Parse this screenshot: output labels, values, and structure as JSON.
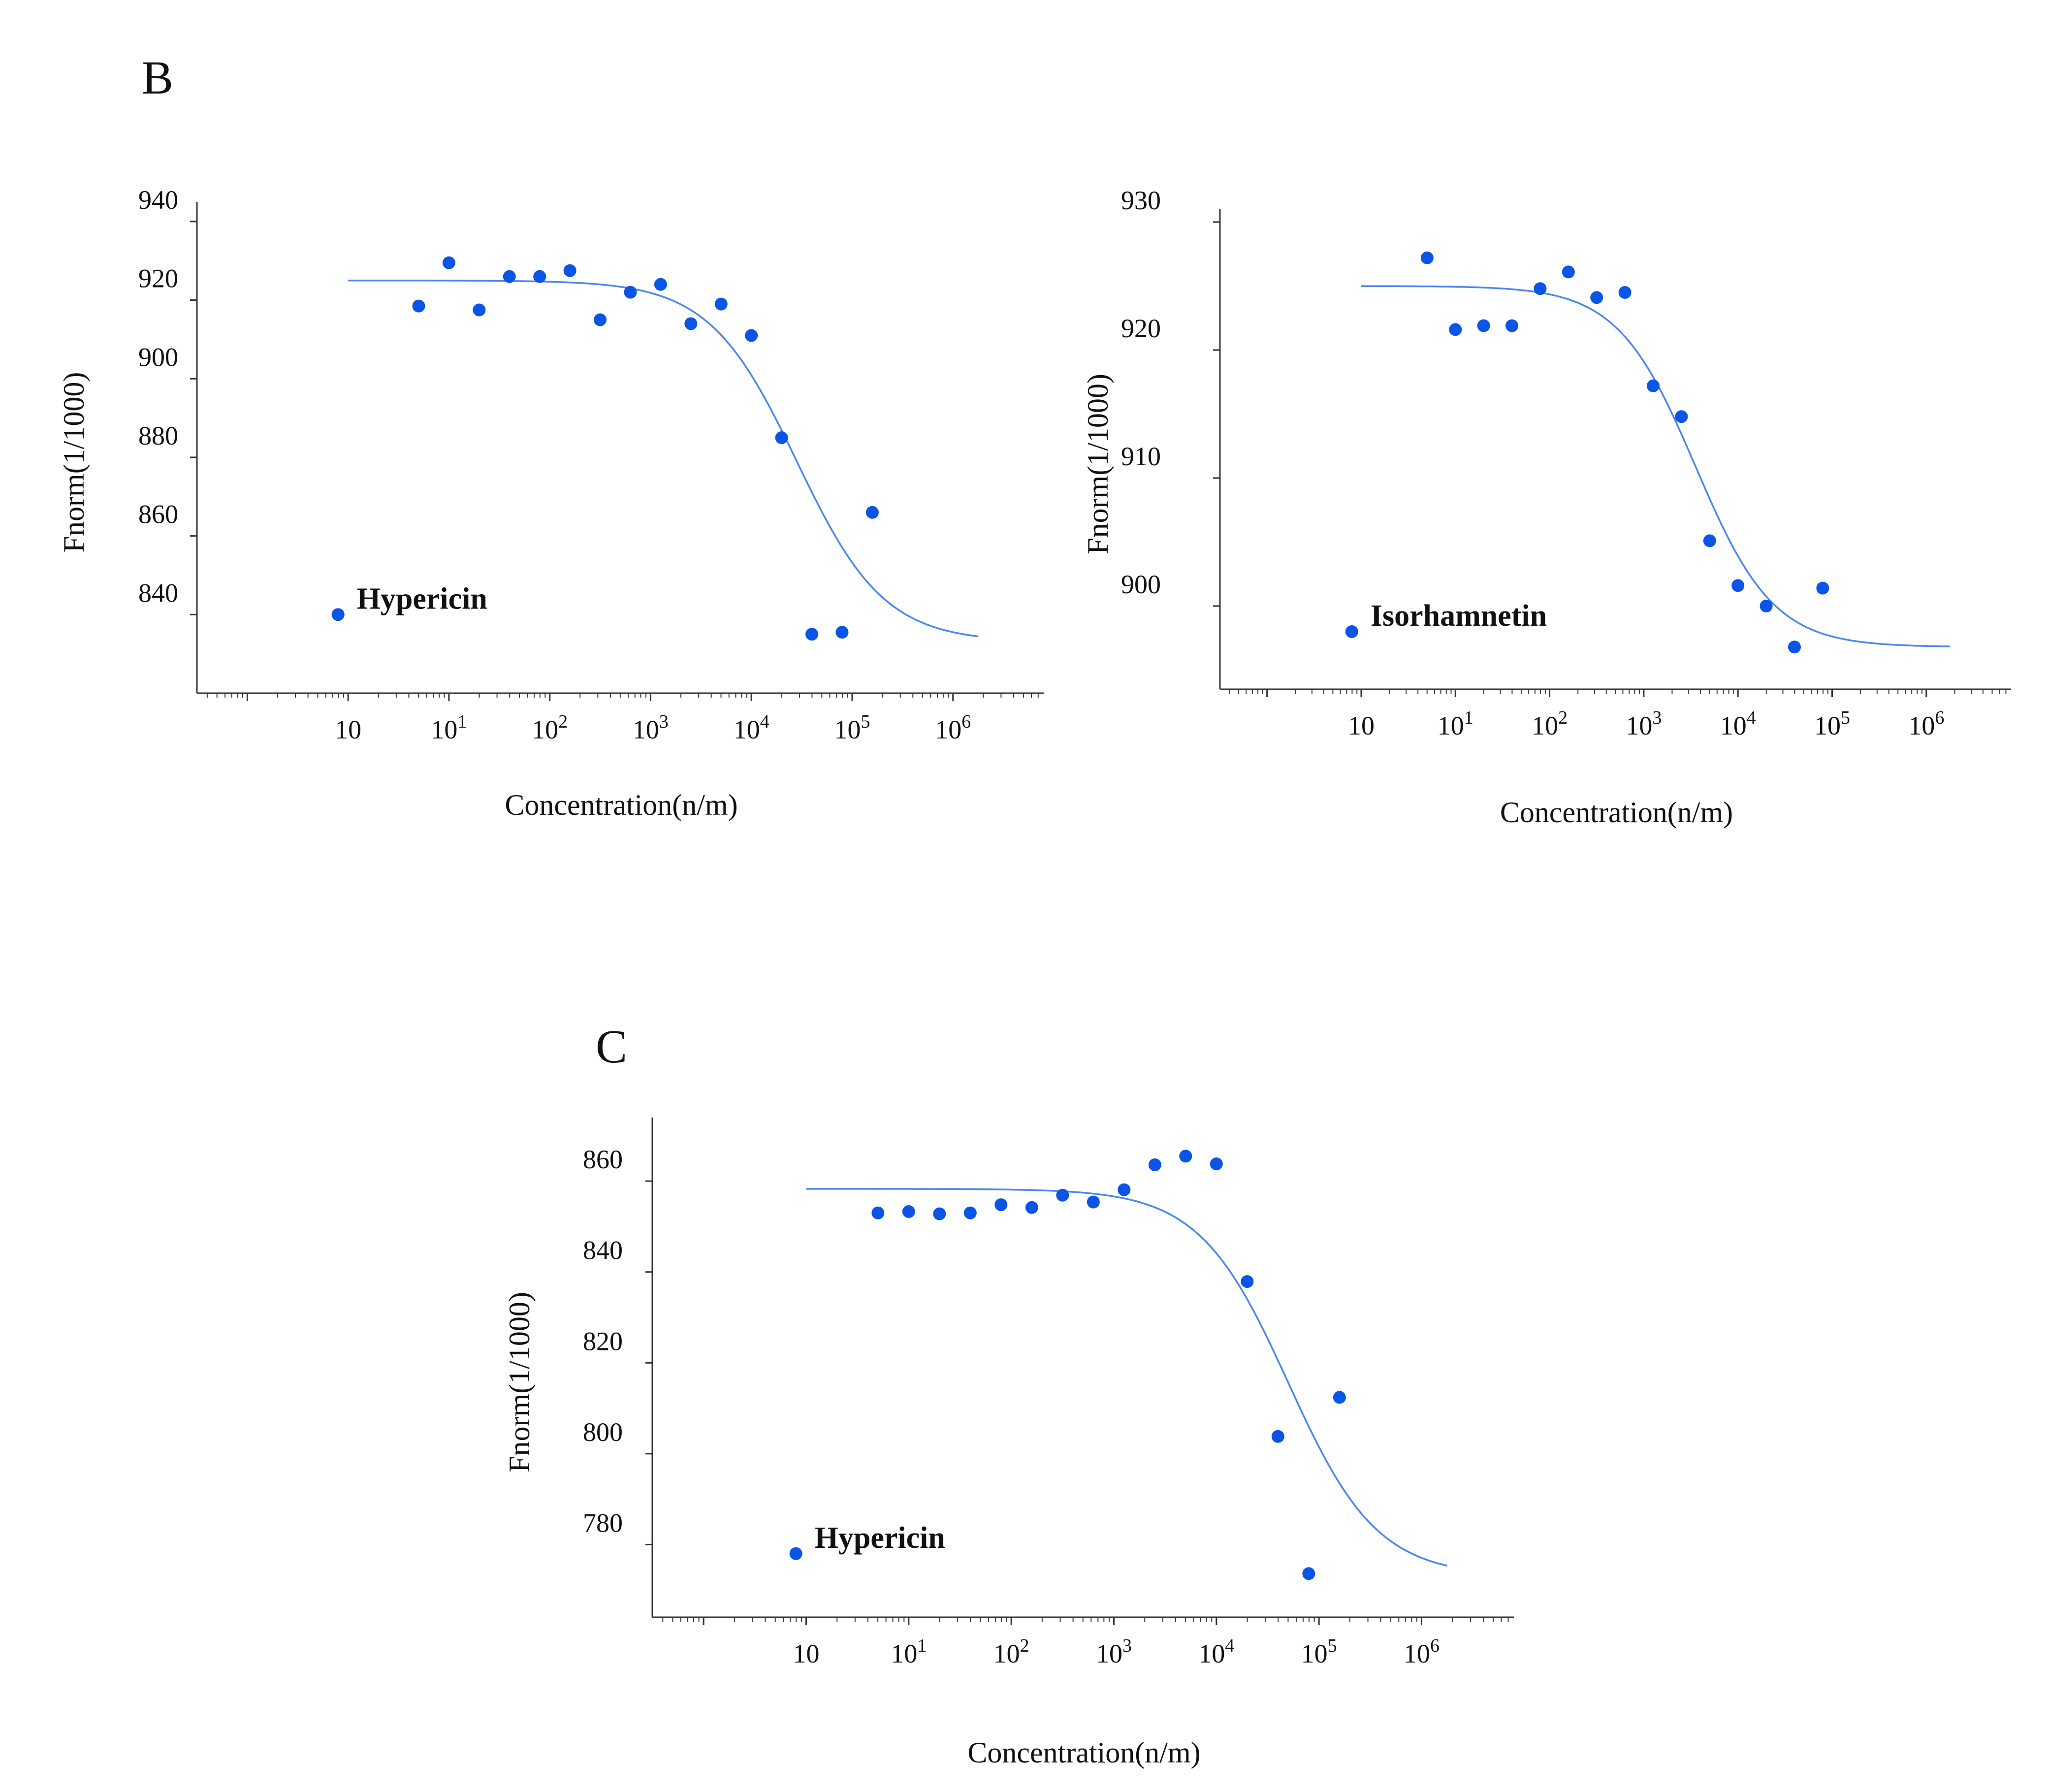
{
  "figure": {
    "labels": {
      "B": "B",
      "C": "C"
    }
  },
  "colors": {
    "points": "#0a55e6",
    "curve": "#4a86f0",
    "axes": "#333333"
  },
  "chart_data": [
    {
      "id": "B-left",
      "type": "scatter",
      "panel": "B",
      "legend": "Hypericin",
      "ylabel": "Fnorm(1/1000)",
      "xlabel": "Concentration(n/m)",
      "xscale": "log",
      "xlim": [
        -1.5,
        6.9
      ],
      "ylim": [
        820,
        945
      ],
      "yticks": [
        840,
        860,
        880,
        900,
        920,
        940
      ],
      "ytick_labels": [
        "840",
        "860",
        "880",
        "900",
        "920",
        "940"
      ],
      "xticks": [
        0,
        1,
        2,
        3,
        4,
        5,
        6
      ],
      "xtick_labels": [
        {
          "base": "10",
          "exp": ""
        },
        {
          "base": "10",
          "exp": "1"
        },
        {
          "base": "10",
          "exp": "2"
        },
        {
          "base": "10",
          "exp": "3"
        },
        {
          "base": "10",
          "exp": "4"
        },
        {
          "base": "10",
          "exp": "5"
        },
        {
          "base": "10",
          "exp": "6"
        }
      ],
      "legend_point": {
        "x": -0.1,
        "y": 840
      },
      "points": [
        {
          "x": 0.7,
          "y": 918.5
        },
        {
          "x": 1.0,
          "y": 929.5
        },
        {
          "x": 1.3,
          "y": 917.5
        },
        {
          "x": 1.6,
          "y": 926
        },
        {
          "x": 1.9,
          "y": 926
        },
        {
          "x": 2.2,
          "y": 927.5
        },
        {
          "x": 2.5,
          "y": 915
        },
        {
          "x": 2.8,
          "y": 922
        },
        {
          "x": 3.1,
          "y": 924
        },
        {
          "x": 3.4,
          "y": 914
        },
        {
          "x": 3.7,
          "y": 919
        },
        {
          "x": 4.0,
          "y": 911
        },
        {
          "x": 4.3,
          "y": 885
        },
        {
          "x": 4.6,
          "y": 835
        },
        {
          "x": 4.9,
          "y": 835.5
        },
        {
          "x": 5.2,
          "y": 866
        }
      ],
      "fit": {
        "model": "sigmoid",
        "top": 925,
        "bottom": 833,
        "log_ec50": 4.45,
        "slope": 1.0,
        "x_range": [
          0.0,
          6.25
        ]
      }
    },
    {
      "id": "B-right",
      "type": "scatter",
      "panel": "B",
      "legend": "Isorhamnetin",
      "ylabel": "Fnorm(1/1000)",
      "xlabel": "Concentration(n/m)",
      "xscale": "log",
      "xlim": [
        -1.5,
        6.9
      ],
      "ylim": [
        893.5,
        931
      ],
      "yticks": [
        900,
        910,
        920,
        930
      ],
      "ytick_labels": [
        "900",
        "910",
        "920",
        "930"
      ],
      "xticks": [
        0,
        1,
        2,
        3,
        4,
        5,
        6
      ],
      "xtick_labels": [
        {
          "base": "10",
          "exp": ""
        },
        {
          "base": "10",
          "exp": "1"
        },
        {
          "base": "10",
          "exp": "2"
        },
        {
          "base": "10",
          "exp": "3"
        },
        {
          "base": "10",
          "exp": "4"
        },
        {
          "base": "10",
          "exp": "5"
        },
        {
          "base": "10",
          "exp": "6"
        }
      ],
      "legend_point": {
        "x": -0.1,
        "y": 898
      },
      "points": [
        {
          "x": 0.7,
          "y": 927.2
        },
        {
          "x": 1.0,
          "y": 921.6
        },
        {
          "x": 1.3,
          "y": 921.9
        },
        {
          "x": 1.6,
          "y": 921.9
        },
        {
          "x": 1.9,
          "y": 924.8
        },
        {
          "x": 2.2,
          "y": 926.1
        },
        {
          "x": 2.5,
          "y": 924.1
        },
        {
          "x": 2.8,
          "y": 924.5
        },
        {
          "x": 3.1,
          "y": 917.2
        },
        {
          "x": 3.4,
          "y": 914.8
        },
        {
          "x": 3.7,
          "y": 905.1
        },
        {
          "x": 4.0,
          "y": 901.6
        },
        {
          "x": 4.3,
          "y": 900
        },
        {
          "x": 4.6,
          "y": 896.8
        },
        {
          "x": 4.9,
          "y": 901.4
        }
      ],
      "fit": {
        "model": "sigmoid",
        "top": 925,
        "bottom": 896.8,
        "log_ec50": 3.55,
        "slope": 1.05,
        "x_range": [
          0.0,
          6.25
        ]
      }
    },
    {
      "id": "C",
      "type": "scatter",
      "panel": "C",
      "legend": "Hypericin",
      "ylabel": "Fnorm(1/1000)",
      "xlabel": "Concentration(n/m)",
      "xscale": "log",
      "xlim": [
        -1.5,
        6.9
      ],
      "ylim": [
        764,
        874
      ],
      "yticks": [
        780,
        800,
        820,
        840,
        860
      ],
      "ytick_labels": [
        "780",
        "800",
        "820",
        "840",
        "860"
      ],
      "xticks": [
        0,
        1,
        2,
        3,
        4,
        5,
        6
      ],
      "xtick_labels": [
        {
          "base": "10",
          "exp": ""
        },
        {
          "base": "10",
          "exp": "1"
        },
        {
          "base": "10",
          "exp": "2"
        },
        {
          "base": "10",
          "exp": "3"
        },
        {
          "base": "10",
          "exp": "4"
        },
        {
          "base": "10",
          "exp": "5"
        },
        {
          "base": "10",
          "exp": "6"
        }
      ],
      "legend_point": {
        "x": -0.1,
        "y": 778
      },
      "points": [
        {
          "x": 0.7,
          "y": 853
        },
        {
          "x": 1.0,
          "y": 853.3
        },
        {
          "x": 1.3,
          "y": 852.8
        },
        {
          "x": 1.6,
          "y": 853
        },
        {
          "x": 1.9,
          "y": 854.8
        },
        {
          "x": 2.2,
          "y": 854.2
        },
        {
          "x": 2.5,
          "y": 856.9
        },
        {
          "x": 2.8,
          "y": 855.4
        },
        {
          "x": 3.1,
          "y": 858.1
        },
        {
          "x": 3.4,
          "y": 863.6
        },
        {
          "x": 3.7,
          "y": 865.5
        },
        {
          "x": 4.0,
          "y": 863.8
        },
        {
          "x": 4.3,
          "y": 837.9
        },
        {
          "x": 4.6,
          "y": 803.8
        },
        {
          "x": 4.9,
          "y": 773.6
        },
        {
          "x": 5.2,
          "y": 812.4
        }
      ],
      "fit": {
        "model": "sigmoid",
        "top": 858.3,
        "bottom": 773,
        "log_ec50": 4.7,
        "slope": 1.0,
        "x_range": [
          0.0,
          6.25
        ]
      }
    }
  ]
}
